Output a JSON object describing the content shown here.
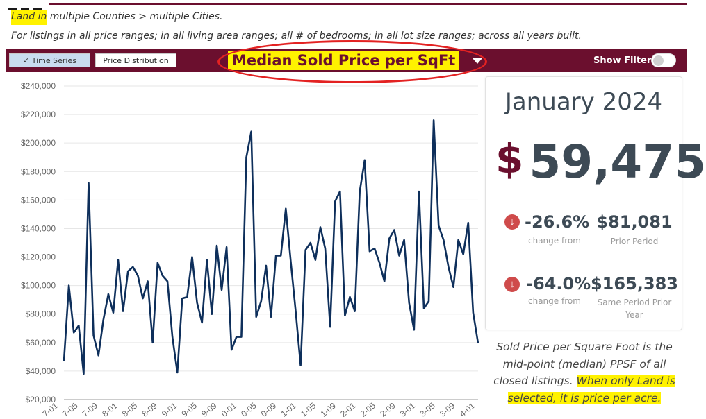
{
  "breadcrumb": {
    "highlight": "Land in",
    "rest": " multiple Counties > multiple Cities."
  },
  "subtitle": "For listings in all price ranges; in all living area ranges; all # of bedrooms; in all lot size ranges; across all years built.",
  "toolbar": {
    "tabs": [
      {
        "label": "✓ Time Series"
      },
      {
        "label": "Price Distribution"
      }
    ],
    "title": "Median Sold Price per SqFt",
    "show_filters_label": "Show Filters:"
  },
  "stats": {
    "period": "January 2024",
    "currency": "$",
    "value": "59,475",
    "change1": {
      "pct": "-26.6%",
      "label": "change from",
      "prior_value": "$81,081",
      "prior_label": "Prior Period"
    },
    "change2": {
      "pct": "-64.0%",
      "label": "change from",
      "prior_value": "$165,383",
      "prior_label": "Same Period Prior Year"
    }
  },
  "note": {
    "text": "Sold Price per Square Foot is the mid-point (median) PPSF of all closed listings.",
    "highlight": "When only Land is selected, it is price per acre."
  },
  "colors": {
    "brand": "#6b0f2e",
    "line": "#0e2f5b",
    "highlight": "#fff200",
    "oval": "#e32222",
    "down": "#cf4b4b"
  },
  "icons": {
    "check": "check-icon",
    "dropdown": "caret-down-icon",
    "down_arrow": "arrow-down-circle-icon"
  },
  "chart_data": {
    "type": "line",
    "title": "Median Sold Price per SqFt",
    "ylim": [
      20000,
      240000
    ],
    "y_ticks": [
      "$20,000",
      "$40,000",
      "$60,000",
      "$80,000",
      "$100,000",
      "$120,000",
      "$140,000",
      "$160,000",
      "$180,000",
      "$200,000",
      "$220,000",
      "$240,000"
    ],
    "x_tick_labels": [
      "7-01",
      "7-05",
      "7-09",
      "8-01",
      "8-05",
      "8-09",
      "9-01",
      "9-05",
      "9-09",
      "0-01",
      "0-05",
      "0-09",
      "1-01",
      "1-05",
      "1-09",
      "2-01",
      "2-05",
      "2-09",
      "3-01",
      "3-05",
      "3-09",
      "4-01"
    ],
    "grid": true,
    "series": [
      {
        "values": [
          47000,
          100000,
          67000,
          72000,
          38000,
          172000,
          65000,
          51000,
          76000,
          94000,
          81000,
          118000,
          82000,
          110000,
          113000,
          107000,
          91000,
          103000,
          60000,
          116000,
          107000,
          103000,
          64000,
          39000,
          91000,
          92000,
          120000,
          88000,
          74000,
          118000,
          80000,
          128000,
          97000,
          127000,
          55000,
          64000,
          64000,
          190000,
          208000,
          78000,
          89000,
          114000,
          78000,
          121000,
          121000,
          154000,
          117000,
          82000,
          44000,
          125000,
          130000,
          118000,
          141000,
          126000,
          71000,
          159000,
          166000,
          79000,
          92000,
          82000,
          166000,
          188000,
          124000,
          126000,
          116000,
          103000,
          133000,
          139000,
          121000,
          132000,
          88000,
          69000,
          166000,
          84000,
          89000,
          216000,
          142000,
          132000,
          113000,
          99000,
          132000,
          122000,
          144000,
          81000,
          59475
        ]
      }
    ]
  }
}
